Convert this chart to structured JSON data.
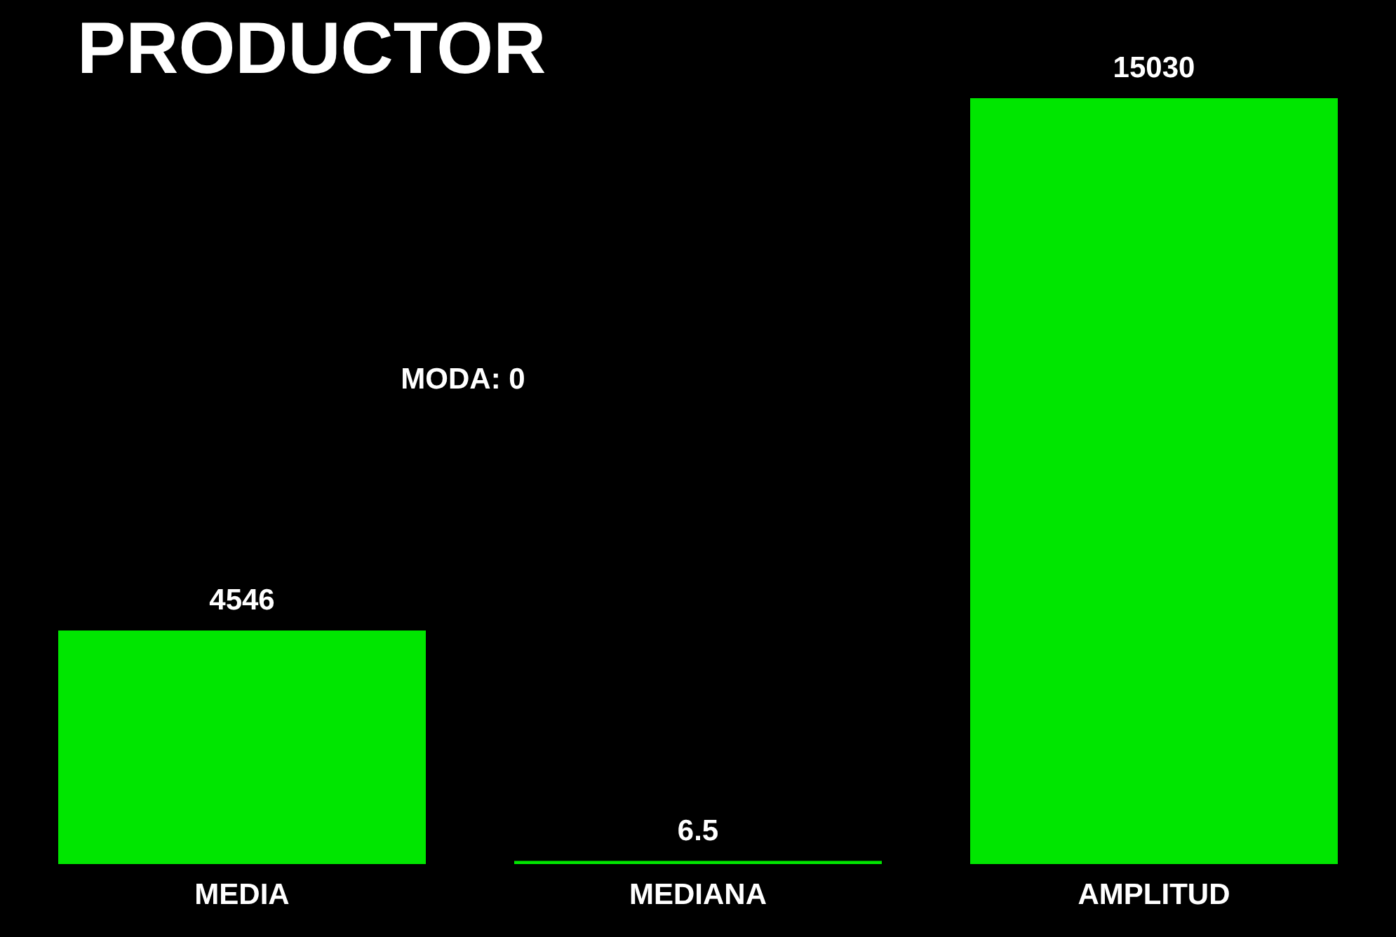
{
  "chart_data": {
    "type": "bar",
    "title": "PRODUCTOR",
    "categories": [
      "MEDIA",
      "MEDIANA",
      "AMPLITUD"
    ],
    "values": [
      4546,
      6.5,
      15030
    ],
    "color": "#00e600",
    "data_labels": true,
    "annotations": [
      "MODA: 0"
    ]
  }
}
